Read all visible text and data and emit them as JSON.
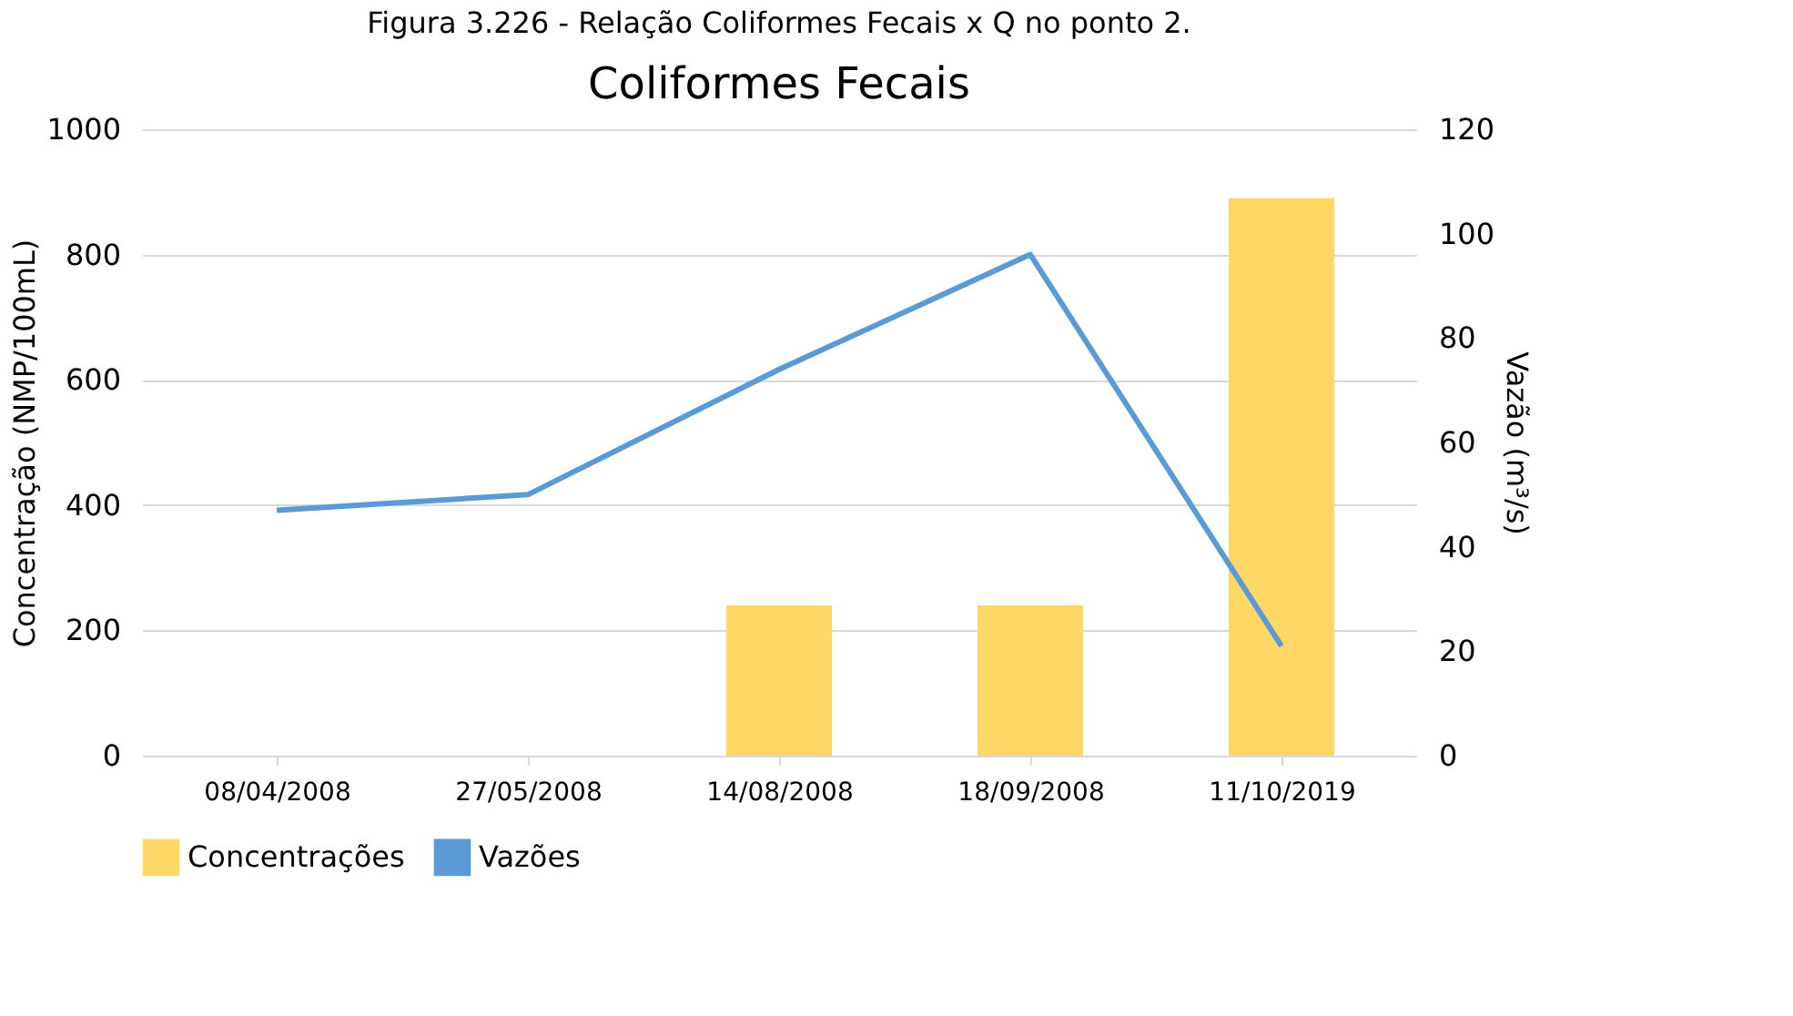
{
  "chart_data": {
    "type": "bar",
    "title": "Coliformes Fecais",
    "annotations": [
      "Figura 3.226 - Relação Coliformes Fecais x Q no ponto 2."
    ],
    "categories": [
      "08/04/2008",
      "27/05/2008",
      "14/08/2008",
      "18/09/2008",
      "11/10/2019"
    ],
    "series": [
      {
        "name": "Concentrações",
        "color": "#fdd866",
        "values": [
          null,
          null,
          240,
          240,
          890
        ]
      },
      {
        "name": "Vazões",
        "type": "line",
        "axis": "y2",
        "color": "#5b9bd5",
        "values": [
          47,
          50,
          74,
          96,
          21
        ]
      }
    ],
    "ylabel": "Concentração (NMP/100mL)",
    "y2label": "Vazão (m³/s)",
    "ylim": [
      0,
      1000
    ],
    "yticks": [
      0,
      200,
      400,
      600,
      800,
      1000
    ],
    "y2lim": [
      0,
      120
    ],
    "y2ticks": [
      0,
      20,
      40,
      60,
      80,
      100,
      120
    ],
    "grid": "y",
    "legend": "bottom",
    "marker": "none",
    "line_style": "solid"
  }
}
